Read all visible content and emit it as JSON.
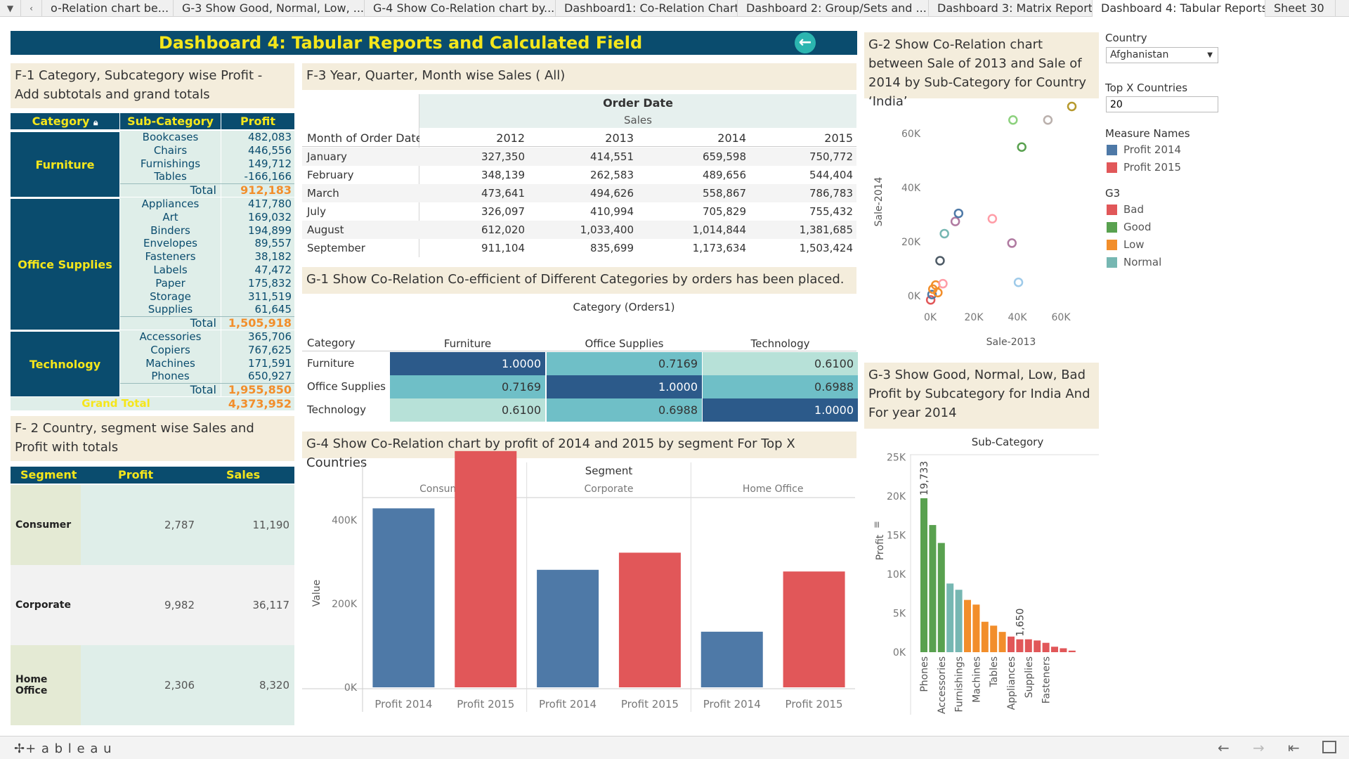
{
  "tabs": [
    "o-Relation chart be...",
    "G-3 Show Good, Normal, Low, ...",
    "G-4 Show Co-Relation chart by...",
    "Dashboard1: Co-Relation Chart",
    "Dashboard 2: Group/Sets and ...",
    "Dashboard 3: Matrix Report",
    "Dashboard 4: Tabular Reports",
    "Sheet 30"
  ],
  "title": "Dashboard 4: Tabular Reports  and Calculated Field",
  "f1": {
    "title": "F-1 Category, Subcategory wise Profit - Add subtotals and grand totals",
    "headers": [
      "Category",
      "Sub-Category",
      "Profit"
    ],
    "groups": [
      {
        "category": "Furniture",
        "rows": [
          [
            "Bookcases",
            "482,083"
          ],
          [
            "Chairs",
            "446,556"
          ],
          [
            "Furnishings",
            "149,712"
          ],
          [
            "Tables",
            "-166,166"
          ]
        ],
        "total": "912,183"
      },
      {
        "category": "Office Supplies",
        "rows": [
          [
            "Appliances",
            "417,780"
          ],
          [
            "Art",
            "169,032"
          ],
          [
            "Binders",
            "194,899"
          ],
          [
            "Envelopes",
            "89,557"
          ],
          [
            "Fasteners",
            "38,182"
          ],
          [
            "Labels",
            "47,472"
          ],
          [
            "Paper",
            "175,832"
          ],
          [
            "Storage",
            "311,519"
          ],
          [
            "Supplies",
            "61,645"
          ]
        ],
        "total": "1,505,918"
      },
      {
        "category": "Technology",
        "rows": [
          [
            "Accessories",
            "365,706"
          ],
          [
            "Copiers",
            "767,625"
          ],
          [
            "Machines",
            "171,591"
          ],
          [
            "Phones",
            "650,927"
          ]
        ],
        "total": "1,955,850"
      }
    ],
    "total_label": "Total",
    "grand_total_label": "Grand Total",
    "grand_total": "4,373,952"
  },
  "f2": {
    "title": "F- 2 Country, segment wise Sales and Profit with totals",
    "headers": [
      "Segment",
      "Profit",
      "Sales"
    ],
    "rows": [
      {
        "segment": "Consumer",
        "profit": "2,787",
        "sales": "11,190"
      },
      {
        "segment": "Corporate",
        "profit": "9,982",
        "sales": "36,117"
      },
      {
        "segment": "Home Office",
        "profit": "2,306",
        "sales": "8,320"
      }
    ]
  },
  "f3": {
    "title": "F-3 Year, Quarter, Month wise Sales ( All)",
    "header_top": "Order Date",
    "header_measure": "Sales",
    "row_header": "Month of Order Date",
    "years": [
      "2012",
      "2013",
      "2014",
      "2015"
    ],
    "rows": [
      {
        "month": "January",
        "values": [
          "327,350",
          "414,551",
          "659,598",
          "750,772"
        ]
      },
      {
        "month": "February",
        "values": [
          "348,139",
          "262,583",
          "489,656",
          "544,404"
        ]
      },
      {
        "month": "March",
        "values": [
          "473,641",
          "494,626",
          "558,867",
          "786,783"
        ]
      },
      {
        "month": "July",
        "values": [
          "326,097",
          "410,994",
          "705,829",
          "755,432"
        ]
      },
      {
        "month": "August",
        "values": [
          "612,020",
          "1,033,400",
          "1,014,844",
          "1,381,685"
        ]
      },
      {
        "month": "September",
        "values": [
          "911,104",
          "835,699",
          "1,173,634",
          "1,503,424"
        ]
      }
    ]
  },
  "g1": {
    "title": "G-1 Show Co-Relation Co-efficient of Different Categories by orders has been placed.",
    "col_header": "Category (Orders1)",
    "row_header": "Category",
    "categories": [
      "Furniture",
      "Office Supplies",
      "Technology"
    ],
    "matrix": [
      [
        "1.0000",
        "0.7169",
        "0.6100"
      ],
      [
        "0.7169",
        "1.0000",
        "0.6988"
      ],
      [
        "0.6100",
        "0.6988",
        "1.0000"
      ]
    ],
    "colors": {
      "high": "#2c5a8a",
      "mid": "#6fbfc7",
      "low": "#b7e1d8"
    }
  },
  "g2": {
    "title": "G-2 Show Co-Relation chart between Sale of 2013 and Sale of 2014 by Sub-Category for Country ‘India’"
  },
  "g3": {
    "title": "G-3 Show Good, Normal, Low, Bad Profit by Subcategory for India And For year 2014"
  },
  "g4": {
    "title": "G-4 Show Co-Relation chart by profit of 2014 and 2015 by segment For Top X Countries"
  },
  "filters": {
    "country_label": "Country",
    "country_value": "Afghanistan",
    "topx_label": "Top X Countries",
    "topx_value": "20",
    "measure_label": "Measure Names",
    "measures": [
      {
        "name": "Profit 2014",
        "color": "#4e79a7"
      },
      {
        "name": "Profit 2015",
        "color": "#e15759"
      }
    ],
    "g3_label": "G3",
    "g3_items": [
      {
        "name": "Bad",
        "color": "#e15759"
      },
      {
        "name": "Good",
        "color": "#59a14f"
      },
      {
        "name": "Low",
        "color": "#f28e2b"
      },
      {
        "name": "Normal",
        "color": "#76b7b2"
      }
    ]
  },
  "chart_data": [
    {
      "id": "g2",
      "type": "scatter",
      "xlabel": "Sale-2013",
      "ylabel": "Sale-2014",
      "xlim": [
        0,
        72000
      ],
      "ylim": [
        0,
        72000
      ],
      "x_ticks": [
        "0K",
        "20K",
        "40K",
        "60K"
      ],
      "y_ticks": [
        "0K",
        "20K",
        "40K",
        "60K"
      ],
      "points": [
        {
          "x": 200,
          "y": -1500,
          "color": "#e15759"
        },
        {
          "x": 800,
          "y": 500,
          "color": "#4e79a7"
        },
        {
          "x": 1200,
          "y": 2500,
          "color": "#f28e2b"
        },
        {
          "x": 2500,
          "y": 4000,
          "color": "#f28e2b"
        },
        {
          "x": 3500,
          "y": 1200,
          "color": "#f28e2b"
        },
        {
          "x": 5800,
          "y": 4500,
          "color": "#ff9da7"
        },
        {
          "x": 4500,
          "y": 13000,
          "color": "#4e5b66"
        },
        {
          "x": 6500,
          "y": 23000,
          "color": "#76b7b2"
        },
        {
          "x": 11500,
          "y": 27500,
          "color": "#b07aa1"
        },
        {
          "x": 13000,
          "y": 30500,
          "color": "#4e79a7"
        },
        {
          "x": 28500,
          "y": 28500,
          "color": "#ff9da7"
        },
        {
          "x": 37500,
          "y": 19500,
          "color": "#b07aa1"
        },
        {
          "x": 40500,
          "y": 5000,
          "color": "#9ecae9"
        },
        {
          "x": 38000,
          "y": 65000,
          "color": "#8cd17d"
        },
        {
          "x": 42000,
          "y": 55000,
          "color": "#59a14f"
        },
        {
          "x": 54000,
          "y": 65000,
          "color": "#bab0ac"
        },
        {
          "x": 65000,
          "y": 70000,
          "color": "#b6992d"
        }
      ]
    },
    {
      "id": "g3",
      "type": "bar",
      "title": "Sub-Category",
      "ylabel": "Profit",
      "ylim": [
        0,
        25000
      ],
      "y_ticks": [
        "0K",
        "5K",
        "10K",
        "15K",
        "20K",
        "25K"
      ],
      "categories": [
        "Phones",
        "",
        "Accessories",
        "",
        "Furnishings",
        "",
        "Machines",
        "",
        "Tables",
        "",
        "Appliances",
        "",
        "Supplies",
        "",
        "Fasteners",
        "",
        "",
        ""
      ],
      "values": [
        19733,
        16300,
        14000,
        8800,
        8000,
        6700,
        6100,
        3900,
        3400,
        2600,
        2000,
        1650,
        1650,
        1500,
        1200,
        700,
        500,
        200
      ],
      "colors": [
        "#59a14f",
        "#59a14f",
        "#59a14f",
        "#76b7b2",
        "#76b7b2",
        "#f28e2b",
        "#f28e2b",
        "#f28e2b",
        "#f28e2b",
        "#f28e2b",
        "#e15759",
        "#e15759",
        "#e15759",
        "#e15759",
        "#e15759",
        "#e15759",
        "#e15759",
        "#e15759"
      ],
      "labels": {
        "0": "19,733",
        "11": "1,650"
      }
    },
    {
      "id": "g4",
      "type": "bar",
      "title": "Segment",
      "ylabel": "Value",
      "ylim": [
        0,
        580000
      ],
      "y_ticks": [
        "0K",
        "200K",
        "400K"
      ],
      "groups": [
        "Consumer",
        "Corporate",
        "Home Office"
      ],
      "series": [
        {
          "name": "Profit 2014",
          "values": [
            428000,
            281000,
            133000
          ]
        },
        {
          "name": "Profit 2015",
          "values": [
            565000,
            322000,
            277000
          ]
        }
      ],
      "x_labels": [
        "Profit 2014",
        "Profit 2015"
      ]
    }
  ],
  "footer": {
    "brand": "+ a b l e a u"
  }
}
